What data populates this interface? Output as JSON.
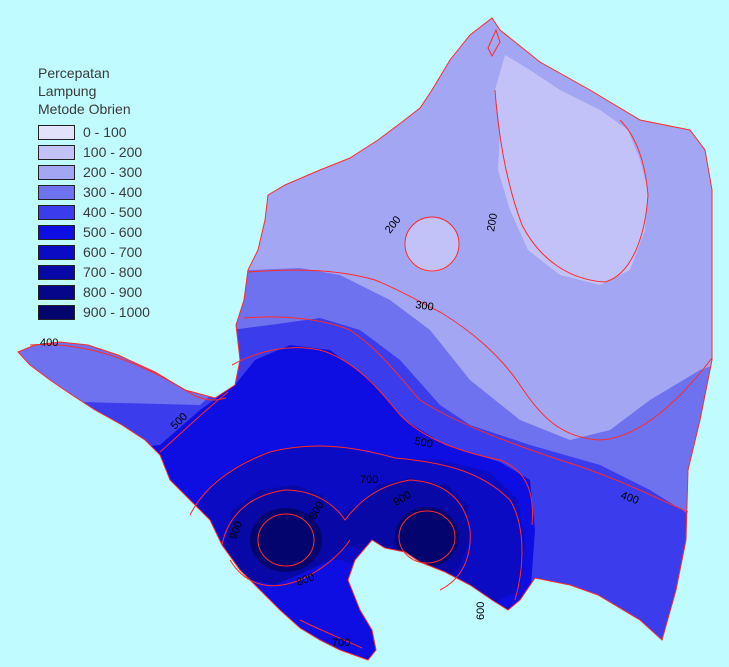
{
  "legend": {
    "title_lines": [
      "Percepatan",
      "Lampung",
      "Metode Obrien"
    ],
    "classes": [
      {
        "label": "0 - 100",
        "color": "#e2e2fb"
      },
      {
        "label": "100 - 200",
        "color": "#c2c2f8"
      },
      {
        "label": "200 - 300",
        "color": "#a3a6f2"
      },
      {
        "label": "300 - 400",
        "color": "#6f72ee"
      },
      {
        "label": "400 - 500",
        "color": "#3b3cec"
      },
      {
        "label": "500 - 600",
        "color": "#0e0ee2"
      },
      {
        "label": "600 - 700",
        "color": "#0b0bc4"
      },
      {
        "label": "700 - 800",
        "color": "#0808a6"
      },
      {
        "label": "800 - 900",
        "color": "#06068a"
      },
      {
        "label": "900 - 1000",
        "color": "#04046e"
      }
    ]
  },
  "contour_labels": [
    "200",
    "200",
    "300",
    "400",
    "500",
    "500",
    "400",
    "700",
    "800",
    "900",
    "900",
    "800",
    "600",
    "700"
  ],
  "colors": {
    "background": "#c0fcff",
    "contour_line": "#ff2a2a",
    "label_text": "#000000"
  }
}
